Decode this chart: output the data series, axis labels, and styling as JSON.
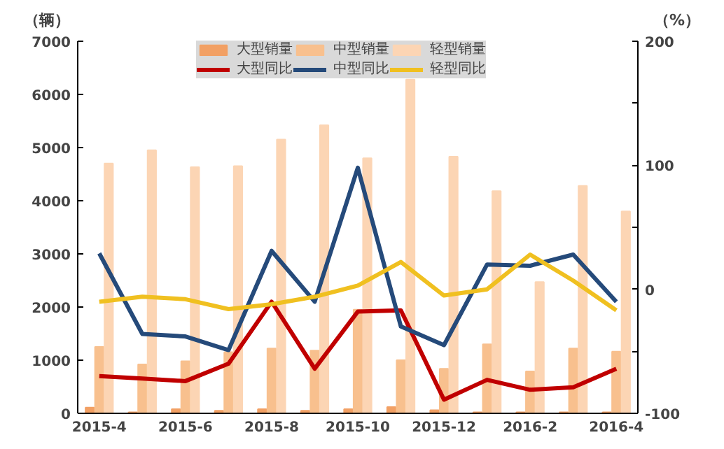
{
  "chart_data": {
    "type": "bar",
    "ylabel": "（辆）",
    "y2label": "（%）",
    "categories": [
      "2015-4",
      null,
      "2015-6",
      null,
      "2015-8",
      null,
      "2015-10",
      null,
      "2015-12",
      null,
      "2016-2",
      null,
      "2016-4"
    ],
    "ylim": [
      0,
      7000
    ],
    "yticks": [
      0,
      1000,
      2000,
      3000,
      4000,
      5000,
      6000,
      7000
    ],
    "y2lim": [
      -100,
      200
    ],
    "y2ticks": [
      -100,
      {
        "value": -50,
        "label": null
      },
      0,
      {
        "value": 50,
        "label": null
      },
      100,
      {
        "value": 150,
        "label": null
      },
      200
    ],
    "grid": false,
    "legend": "top",
    "series": [
      {
        "name": "大型销量",
        "color": "#f2a064",
        "values": [
          110,
          20,
          80,
          50,
          80,
          50,
          80,
          120,
          60,
          20,
          20,
          20,
          20
        ]
      },
      {
        "name": "中型销量",
        "color": "#f8c08e",
        "values": [
          1250,
          920,
          980,
          1150,
          1220,
          1180,
          1950,
          1000,
          840,
          1300,
          790,
          1220,
          1160
        ]
      },
      {
        "name": "轻型销量",
        "color": "#fcd5b4",
        "values": [
          4700,
          4950,
          4630,
          4650,
          5150,
          5420,
          4800,
          6280,
          4830,
          4180,
          2470,
          4280,
          3800
        ]
      },
      {
        "name": "大型同比",
        "type": "line",
        "axis": "y2",
        "color": "#c00000",
        "values": [
          -70,
          -72,
          -74,
          -60,
          -10,
          -64,
          -18,
          -17,
          -89,
          -73,
          -81,
          -79,
          -64
        ]
      },
      {
        "name": "中型同比",
        "type": "line",
        "axis": "y2",
        "color": "#254a7a",
        "values": [
          29,
          -36,
          -38,
          -49,
          31,
          -10,
          98,
          -30,
          -45,
          20,
          19,
          28,
          -10
        ]
      },
      {
        "name": "轻型同比",
        "type": "line",
        "axis": "y2",
        "color": "#f0c020",
        "values": [
          -10,
          -6,
          -8,
          -16,
          -12,
          -6,
          3,
          22,
          -5,
          0,
          28,
          7,
          -17
        ]
      }
    ]
  }
}
